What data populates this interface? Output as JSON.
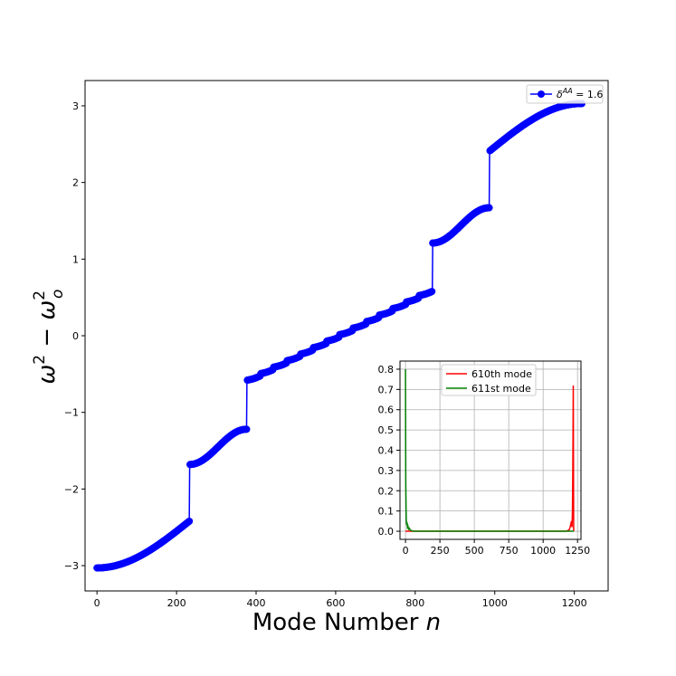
{
  "chart_data": [
    {
      "type": "line",
      "markers": "circle",
      "xlabel_text": "Mode Number",
      "xlabel_var": "n",
      "ylabel": "ω² − ω_o²",
      "xlim": [
        -30,
        1285
      ],
      "ylim": [
        -3.33,
        3.33
      ],
      "x_ticks": [
        0,
        200,
        400,
        600,
        800,
        1000,
        1200
      ],
      "y_ticks": [
        -3,
        -2,
        -1,
        0,
        1,
        2,
        3
      ],
      "x_tick_labels": [
        "0",
        "200",
        "400",
        "600",
        "800",
        "1000",
        "1200"
      ],
      "y_tick_labels": [
        "−3",
        "−2",
        "−1",
        "0",
        "1",
        "2",
        "3"
      ],
      "legend": {
        "position": "top-right",
        "symbol": "δ",
        "superscript": "AA",
        "value_text": " = 1.6"
      },
      "series": [
        {
          "color": "#0000ff",
          "band_ranges": [
            {
              "x": [
                0,
                232
              ],
              "y_start": -3.03,
              "y_end": -2.42
            },
            {
              "x": [
                233,
                376
              ],
              "y_start": -1.68,
              "y_end": -1.22
            },
            {
              "x": [
                377,
                843
              ],
              "y_start": -0.58,
              "y_end": 0.58,
              "steps": 14
            },
            {
              "x": [
                844,
                986
              ],
              "y_start": 1.21,
              "y_end": 1.67
            },
            {
              "x": [
                987,
                1219
              ],
              "y_start": 2.41,
              "y_end": 3.03
            }
          ]
        }
      ]
    },
    {
      "type": "line",
      "inset": true,
      "xlim": [
        -40,
        1275
      ],
      "ylim": [
        -0.04,
        0.84
      ],
      "x_ticks": [
        0,
        250,
        500,
        750,
        1000,
        1250
      ],
      "y_ticks": [
        0.0,
        0.1,
        0.2,
        0.3,
        0.4,
        0.5,
        0.6,
        0.7,
        0.8
      ],
      "x_tick_labels": [
        "0",
        "250",
        "500",
        "750",
        "1000",
        "1250"
      ],
      "y_tick_labels": [
        "0.0",
        "0.1",
        "0.2",
        "0.3",
        "0.4",
        "0.5",
        "0.6",
        "0.7",
        "0.8"
      ],
      "grid": true,
      "legend": {
        "position": "top-center"
      },
      "series": [
        {
          "name": "610th mode",
          "color": "#ff0000",
          "peak_x": 1219,
          "peak_y": 0.72,
          "points": [
            [
              0,
              0
            ],
            [
              1160,
              0
            ],
            [
              1180,
              0.003
            ],
            [
              1190,
              0.008
            ],
            [
              1196,
              0.02
            ],
            [
              1201,
              0.035
            ],
            [
              1206,
              0.05
            ],
            [
              1210,
              0.02
            ],
            [
              1213,
              0.1
            ],
            [
              1215,
              0.25
            ],
            [
              1217,
              0.45
            ],
            [
              1219,
              0.72
            ],
            [
              1220,
              0.5
            ],
            [
              1221,
              0.2
            ],
            [
              1222,
              0
            ]
          ]
        },
        {
          "name": "611st mode",
          "color": "#008000",
          "peak_x": 0,
          "peak_y": 0.8,
          "points": [
            [
              0,
              0.8
            ],
            [
              1,
              0.5
            ],
            [
              2,
              0.25
            ],
            [
              4,
              0.12
            ],
            [
              6,
              0.05
            ],
            [
              9,
              0.03
            ],
            [
              11,
              0.045
            ],
            [
              14,
              0.02
            ],
            [
              18,
              0.025
            ],
            [
              22,
              0.01
            ],
            [
              28,
              0.015
            ],
            [
              35,
              0.005
            ],
            [
              45,
              0.003
            ],
            [
              60,
              0
            ],
            [
              1222,
              0
            ]
          ]
        }
      ]
    }
  ]
}
